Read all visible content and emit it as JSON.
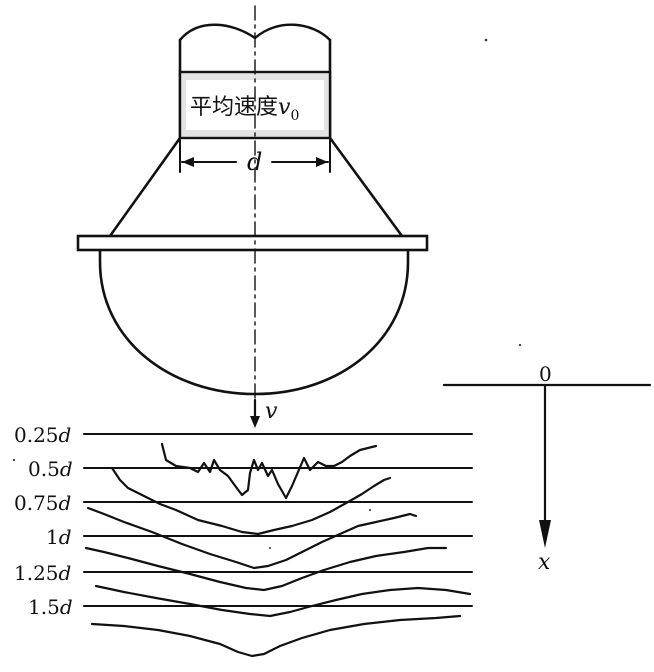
{
  "nozzle": {
    "label_text": "平均速度",
    "label_symbol": "v",
    "label_subscript": "0",
    "diameter_label": "d"
  },
  "velocity_label": "v",
  "axis": {
    "origin_label": "0",
    "x_label": "x"
  },
  "depth_levels": [
    {
      "num": "0.25",
      "unit": "d"
    },
    {
      "num": "0.5",
      "unit": "d"
    },
    {
      "num": "0.75",
      "unit": "d"
    },
    {
      "num": "1",
      "unit": "d"
    },
    {
      "num": "1.25",
      "unit": "d"
    },
    {
      "num": "1.5",
      "unit": "d"
    }
  ]
}
